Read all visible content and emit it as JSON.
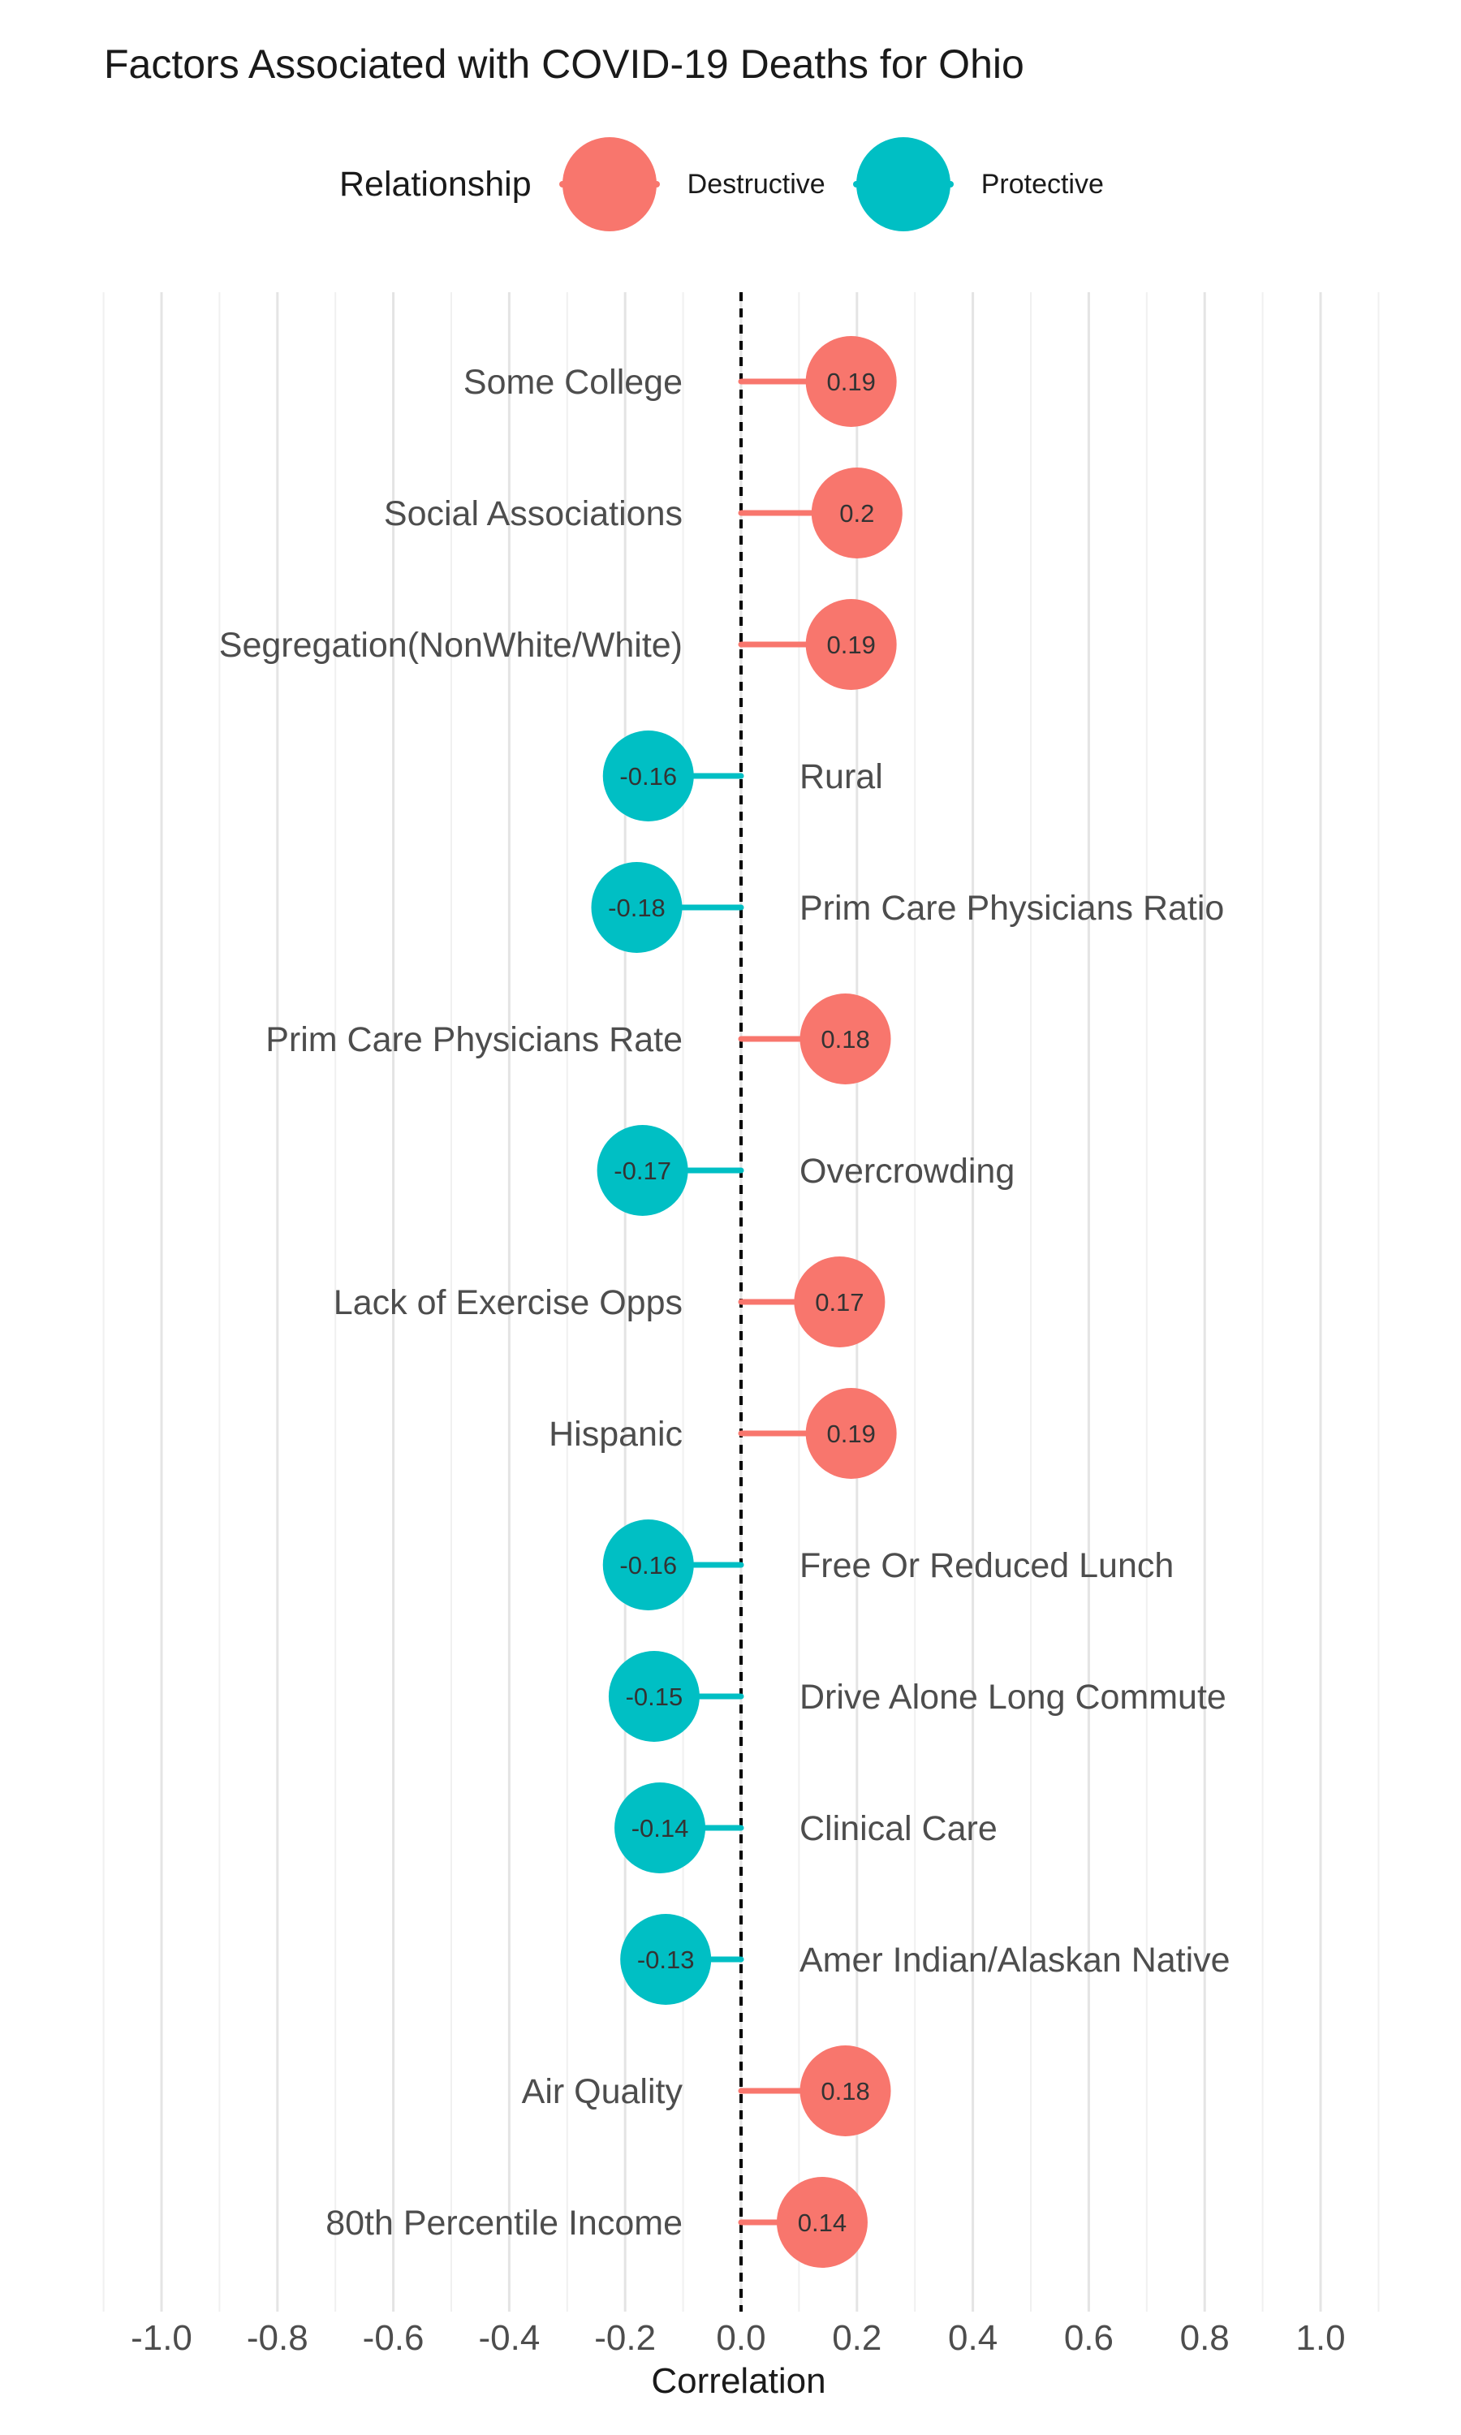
{
  "chart_data": {
    "type": "lollipop",
    "title": "Factors Associated with COVID-19 Deaths for Ohio",
    "xlabel": "Correlation",
    "ylabel": "",
    "xlim": [
      -1.1,
      1.1
    ],
    "x_ticks": [
      -1.0,
      -0.8,
      -0.6,
      -0.4,
      -0.2,
      0.0,
      0.2,
      0.4,
      0.6,
      0.8,
      1.0
    ],
    "x_tick_labels": [
      "-1.0",
      "-0.8",
      "-0.6",
      "-0.4",
      "-0.2",
      "0.0",
      "0.2",
      "0.4",
      "0.6",
      "0.8",
      "1.0"
    ],
    "reference_line": 0,
    "grid": true,
    "legend": {
      "title": "Relationship",
      "position": "top",
      "entries": [
        {
          "label": "Destructive",
          "color": "#F8766D"
        },
        {
          "label": "Protective",
          "color": "#00BFC4"
        }
      ]
    },
    "series": [
      {
        "factor": "Some College",
        "value": 0.19,
        "label": "0.19",
        "relationship": "Destructive"
      },
      {
        "factor": "Social Associations",
        "value": 0.2,
        "label": "0.2",
        "relationship": "Destructive"
      },
      {
        "factor": "Segregation(NonWhite/White)",
        "value": 0.19,
        "label": "0.19",
        "relationship": "Destructive"
      },
      {
        "factor": "Rural",
        "value": -0.16,
        "label": "-0.16",
        "relationship": "Protective"
      },
      {
        "factor": "Prim Care Physicians Ratio",
        "value": -0.18,
        "label": "-0.18",
        "relationship": "Protective"
      },
      {
        "factor": "Prim Care Physicians Rate",
        "value": 0.18,
        "label": "0.18",
        "relationship": "Destructive"
      },
      {
        "factor": "Overcrowding",
        "value": -0.17,
        "label": "-0.17",
        "relationship": "Protective"
      },
      {
        "factor": "Lack of Exercise Opps",
        "value": 0.17,
        "label": "0.17",
        "relationship": "Destructive"
      },
      {
        "factor": "Hispanic",
        "value": 0.19,
        "label": "0.19",
        "relationship": "Destructive"
      },
      {
        "factor": "Free Or Reduced Lunch",
        "value": -0.16,
        "label": "-0.16",
        "relationship": "Protective"
      },
      {
        "factor": "Drive Alone Long Commute",
        "value": -0.15,
        "label": "-0.15",
        "relationship": "Protective"
      },
      {
        "factor": "Clinical Care",
        "value": -0.14,
        "label": "-0.14",
        "relationship": "Protective"
      },
      {
        "factor": "Amer Indian/Alaskan Native",
        "value": -0.13,
        "label": "-0.13",
        "relationship": "Protective"
      },
      {
        "factor": "Air Quality",
        "value": 0.18,
        "label": "0.18",
        "relationship": "Destructive"
      },
      {
        "factor": "80th Percentile Income",
        "value": 0.14,
        "label": "0.14",
        "relationship": "Destructive"
      }
    ]
  }
}
